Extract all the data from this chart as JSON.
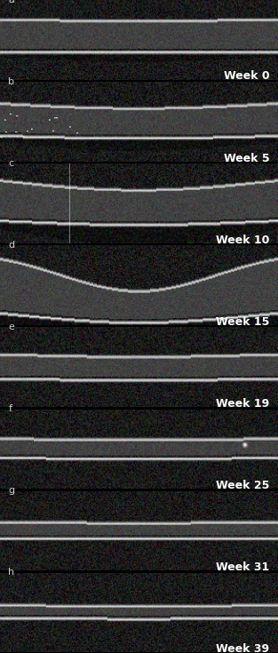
{
  "panels": [
    {
      "label": "a",
      "week": "Week 0",
      "panel_idx": 0
    },
    {
      "label": "b",
      "week": "Week 5",
      "panel_idx": 1
    },
    {
      "label": "c",
      "week": "Week 10",
      "panel_idx": 2
    },
    {
      "label": "d",
      "week": "Week 15",
      "panel_idx": 3
    },
    {
      "label": "e",
      "week": "Week 19",
      "panel_idx": 4
    },
    {
      "label": "f",
      "week": "Week 25",
      "panel_idx": 5
    },
    {
      "label": "g",
      "week": "Week 31",
      "panel_idx": 6
    },
    {
      "label": "h",
      "week": "Week 39",
      "panel_idx": 7
    }
  ],
  "n_panels": 8,
  "bg_color": "#000000",
  "text_color": "#ffffff",
  "label_color": "#cccccc",
  "week_fontsize": 9,
  "letter_fontsize": 8,
  "figwidth": 3.13,
  "figheight": 7.35,
  "dpi": 100
}
